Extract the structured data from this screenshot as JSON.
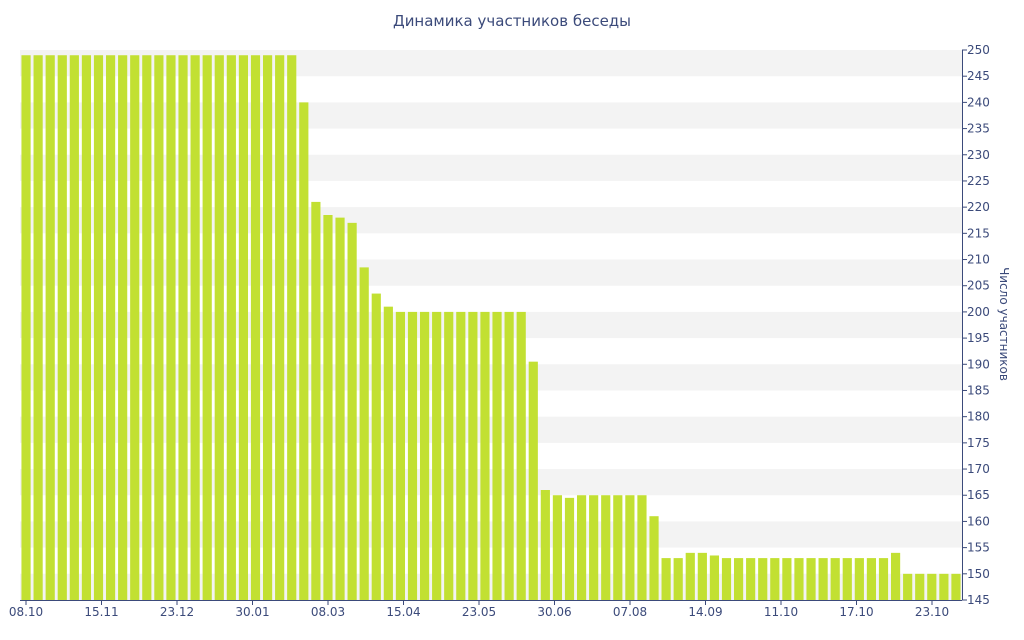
{
  "chart_data": {
    "type": "bar",
    "title": "Динамика участников беседы",
    "xlabel": "",
    "ylabel": "Число участников",
    "ylim": [
      145,
      250
    ],
    "ytick_step": 5,
    "x_tick_labels": [
      "08.10",
      "15.11",
      "23.12",
      "30.01",
      "08.03",
      "15.04",
      "23.05",
      "30.06",
      "07.08",
      "14.09",
      "11.10",
      "17.10",
      "23.10"
    ],
    "grid": "alternating horizontal bands",
    "y_axis_position": "right",
    "bar_color": "#c2e032",
    "values": [
      249,
      249,
      249,
      249,
      249,
      249,
      249,
      249,
      249,
      249,
      249,
      249,
      249,
      249,
      249,
      249,
      249,
      249,
      249,
      249,
      249,
      249,
      249,
      240,
      221,
      218.5,
      218,
      217,
      208.5,
      203.5,
      201,
      200,
      200,
      200,
      200,
      200,
      200,
      200,
      200,
      200,
      200,
      200,
      190.5,
      166,
      165,
      164.5,
      165,
      165,
      165,
      165,
      165,
      165,
      161,
      153,
      153,
      154,
      154,
      153.5,
      153,
      153,
      153,
      153,
      153,
      153,
      153,
      153,
      153,
      153,
      153,
      153,
      153,
      153,
      154,
      150,
      150,
      150,
      150,
      150
    ]
  }
}
